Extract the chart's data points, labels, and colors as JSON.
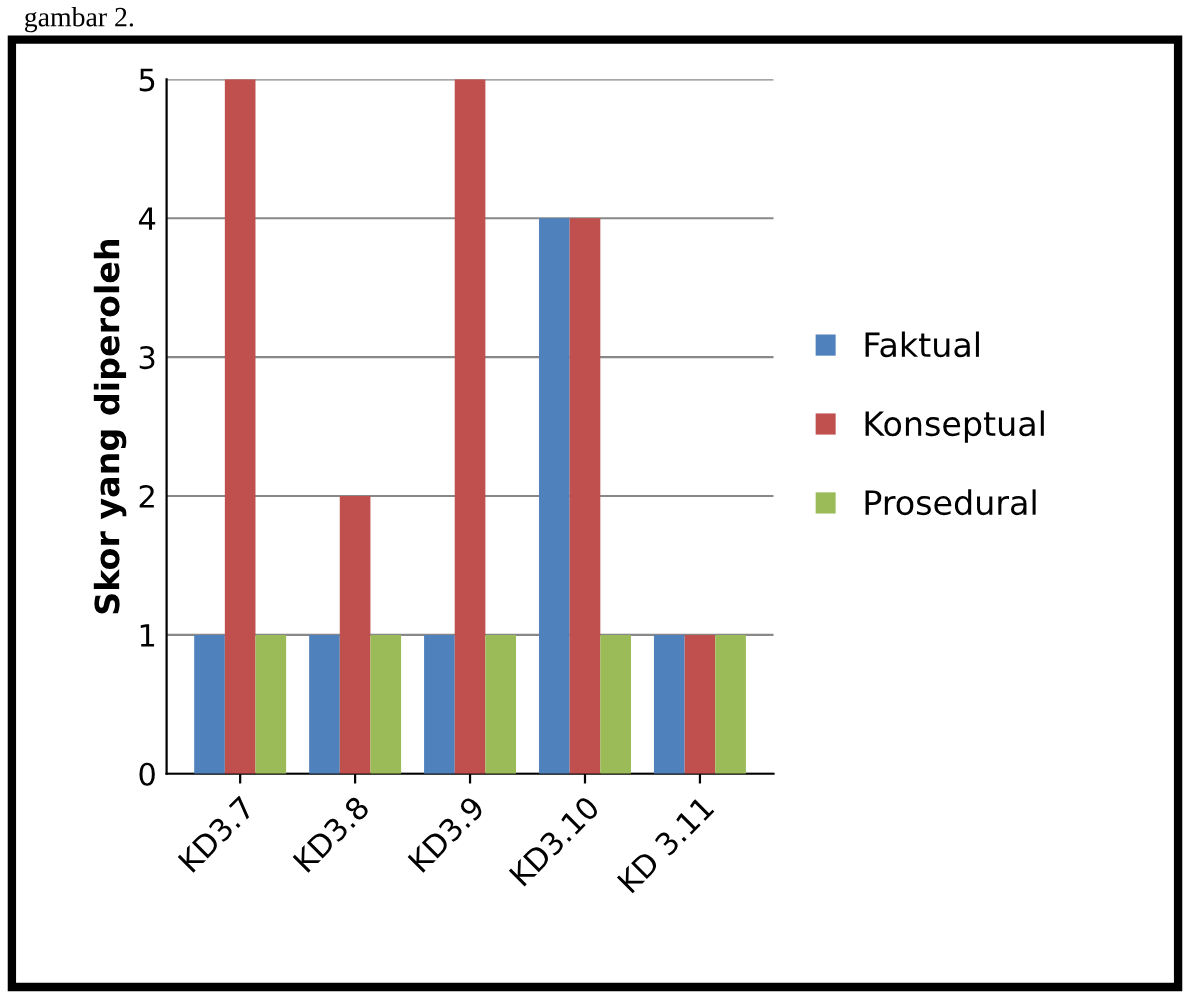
{
  "chart_data": {
    "type": "bar",
    "ylabel": "Skor yang diperoleh",
    "categories": [
      "KD3.7",
      "KD3.8",
      "KD3.9",
      "KD3.10",
      "KD 3.11"
    ],
    "series": [
      {
        "name": "Faktual",
        "color": "#4f81bd",
        "values": [
          1,
          1,
          1,
          4,
          1
        ]
      },
      {
        "name": "Konseptual",
        "color": "#c0504d",
        "values": [
          5,
          2,
          5,
          4,
          1
        ]
      },
      {
        "name": "Prosedural",
        "color": "#9bbb59",
        "values": [
          1,
          1,
          1,
          1,
          1
        ]
      }
    ],
    "ylim": [
      0,
      5
    ],
    "yticks": [
      0,
      1,
      2,
      3,
      4,
      5
    ],
    "grid": "y",
    "legend": "right",
    "annotations": [
      "gambar 2."
    ]
  }
}
